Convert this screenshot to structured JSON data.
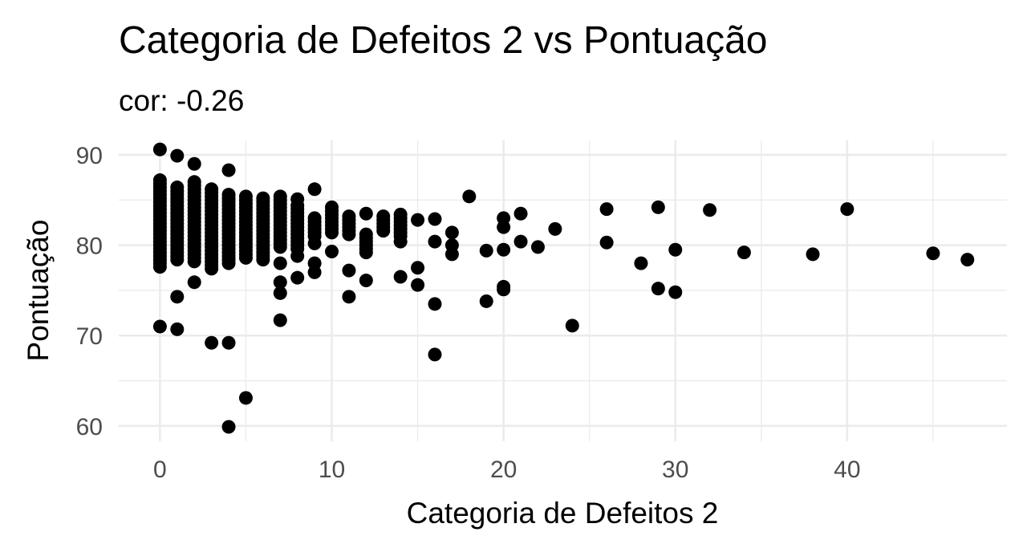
{
  "chart_data": {
    "type": "scatter",
    "title": "Categoria de Defeitos 2 vs Pontuação",
    "subtitle": "cor: -0.26",
    "xlabel": "Categoria de Defeitos 2",
    "ylabel": "Pontuação",
    "xlim": [
      -2.4,
      49.3
    ],
    "ylim": [
      58.3,
      91.6
    ],
    "x_ticks": [
      0,
      10,
      20,
      30,
      40
    ],
    "x_tick_labels": [
      "0",
      "10",
      "20",
      "30",
      "40"
    ],
    "y_ticks": [
      60,
      70,
      80,
      90
    ],
    "y_tick_labels": [
      "60",
      "70",
      "80",
      "90"
    ],
    "grid": true,
    "point_color": "#000000",
    "dense_columns": [
      {
        "x": 0,
        "y_min": 77.6,
        "y_max": 87.2
      },
      {
        "x": 1,
        "y_min": 78.4,
        "y_max": 86.6
      },
      {
        "x": 2,
        "y_min": 78.2,
        "y_max": 87.0
      },
      {
        "x": 3,
        "y_min": 77.4,
        "y_max": 86.2
      },
      {
        "x": 4,
        "y_min": 78.0,
        "y_max": 85.6
      },
      {
        "x": 5,
        "y_min": 78.6,
        "y_max": 85.4
      },
      {
        "x": 6,
        "y_min": 78.4,
        "y_max": 85.2
      },
      {
        "x": 7,
        "y_min": 79.8,
        "y_max": 85.4
      },
      {
        "x": 8,
        "y_min": 79.6,
        "y_max": 84.4
      },
      {
        "x": 9,
        "y_min": 81.0,
        "y_max": 83.2
      },
      {
        "x": 10,
        "y_min": 81.4,
        "y_max": 84.2
      },
      {
        "x": 11,
        "y_min": 81.2,
        "y_max": 83.4
      },
      {
        "x": 12,
        "y_min": 79.6,
        "y_max": 81.4
      },
      {
        "x": 13,
        "y_min": 81.6,
        "y_max": 83.4
      },
      {
        "x": 14,
        "y_min": 81.0,
        "y_max": 83.4
      }
    ],
    "points": [
      {
        "x": 0,
        "y": 90.6
      },
      {
        "x": 0,
        "y": 71.0
      },
      {
        "x": 1,
        "y": 89.9
      },
      {
        "x": 1,
        "y": 74.3
      },
      {
        "x": 1,
        "y": 70.7
      },
      {
        "x": 2,
        "y": 89.0
      },
      {
        "x": 2,
        "y": 75.9
      },
      {
        "x": 3,
        "y": 69.2
      },
      {
        "x": 4,
        "y": 88.3
      },
      {
        "x": 4,
        "y": 69.2
      },
      {
        "x": 4,
        "y": 59.9
      },
      {
        "x": 5,
        "y": 63.1
      },
      {
        "x": 7,
        "y": 78.0
      },
      {
        "x": 7,
        "y": 75.9
      },
      {
        "x": 7,
        "y": 74.7
      },
      {
        "x": 7,
        "y": 71.7
      },
      {
        "x": 8,
        "y": 85.1
      },
      {
        "x": 8,
        "y": 78.8
      },
      {
        "x": 8,
        "y": 76.4
      },
      {
        "x": 9,
        "y": 86.2
      },
      {
        "x": 9,
        "y": 80.2
      },
      {
        "x": 9,
        "y": 78.0
      },
      {
        "x": 9,
        "y": 77.0
      },
      {
        "x": 10,
        "y": 79.3
      },
      {
        "x": 11,
        "y": 77.2
      },
      {
        "x": 11,
        "y": 74.3
      },
      {
        "x": 12,
        "y": 83.5
      },
      {
        "x": 12,
        "y": 79.2
      },
      {
        "x": 12,
        "y": 76.1
      },
      {
        "x": 14,
        "y": 80.4
      },
      {
        "x": 14,
        "y": 76.5
      },
      {
        "x": 15,
        "y": 82.8
      },
      {
        "x": 15,
        "y": 77.5
      },
      {
        "x": 15,
        "y": 75.6
      },
      {
        "x": 16,
        "y": 82.9
      },
      {
        "x": 16,
        "y": 80.4
      },
      {
        "x": 16,
        "y": 73.5
      },
      {
        "x": 16,
        "y": 67.9
      },
      {
        "x": 17,
        "y": 81.4
      },
      {
        "x": 17,
        "y": 80.0
      },
      {
        "x": 17,
        "y": 79.0
      },
      {
        "x": 18,
        "y": 85.4
      },
      {
        "x": 19,
        "y": 79.4
      },
      {
        "x": 19,
        "y": 73.8
      },
      {
        "x": 20,
        "y": 83.0
      },
      {
        "x": 20,
        "y": 82.0
      },
      {
        "x": 20,
        "y": 79.5
      },
      {
        "x": 20,
        "y": 75.4
      },
      {
        "x": 20,
        "y": 75.1
      },
      {
        "x": 21,
        "y": 83.5
      },
      {
        "x": 21,
        "y": 80.4
      },
      {
        "x": 22,
        "y": 79.8
      },
      {
        "x": 23,
        "y": 81.8
      },
      {
        "x": 24,
        "y": 71.1
      },
      {
        "x": 26,
        "y": 84.0
      },
      {
        "x": 26,
        "y": 80.3
      },
      {
        "x": 28,
        "y": 78.0
      },
      {
        "x": 29,
        "y": 84.2
      },
      {
        "x": 29,
        "y": 75.2
      },
      {
        "x": 30,
        "y": 79.5
      },
      {
        "x": 30,
        "y": 74.8
      },
      {
        "x": 32,
        "y": 83.9
      },
      {
        "x": 34,
        "y": 79.2
      },
      {
        "x": 38,
        "y": 79.0
      },
      {
        "x": 40,
        "y": 84.0
      },
      {
        "x": 45,
        "y": 79.1
      },
      {
        "x": 47,
        "y": 78.4
      }
    ]
  }
}
